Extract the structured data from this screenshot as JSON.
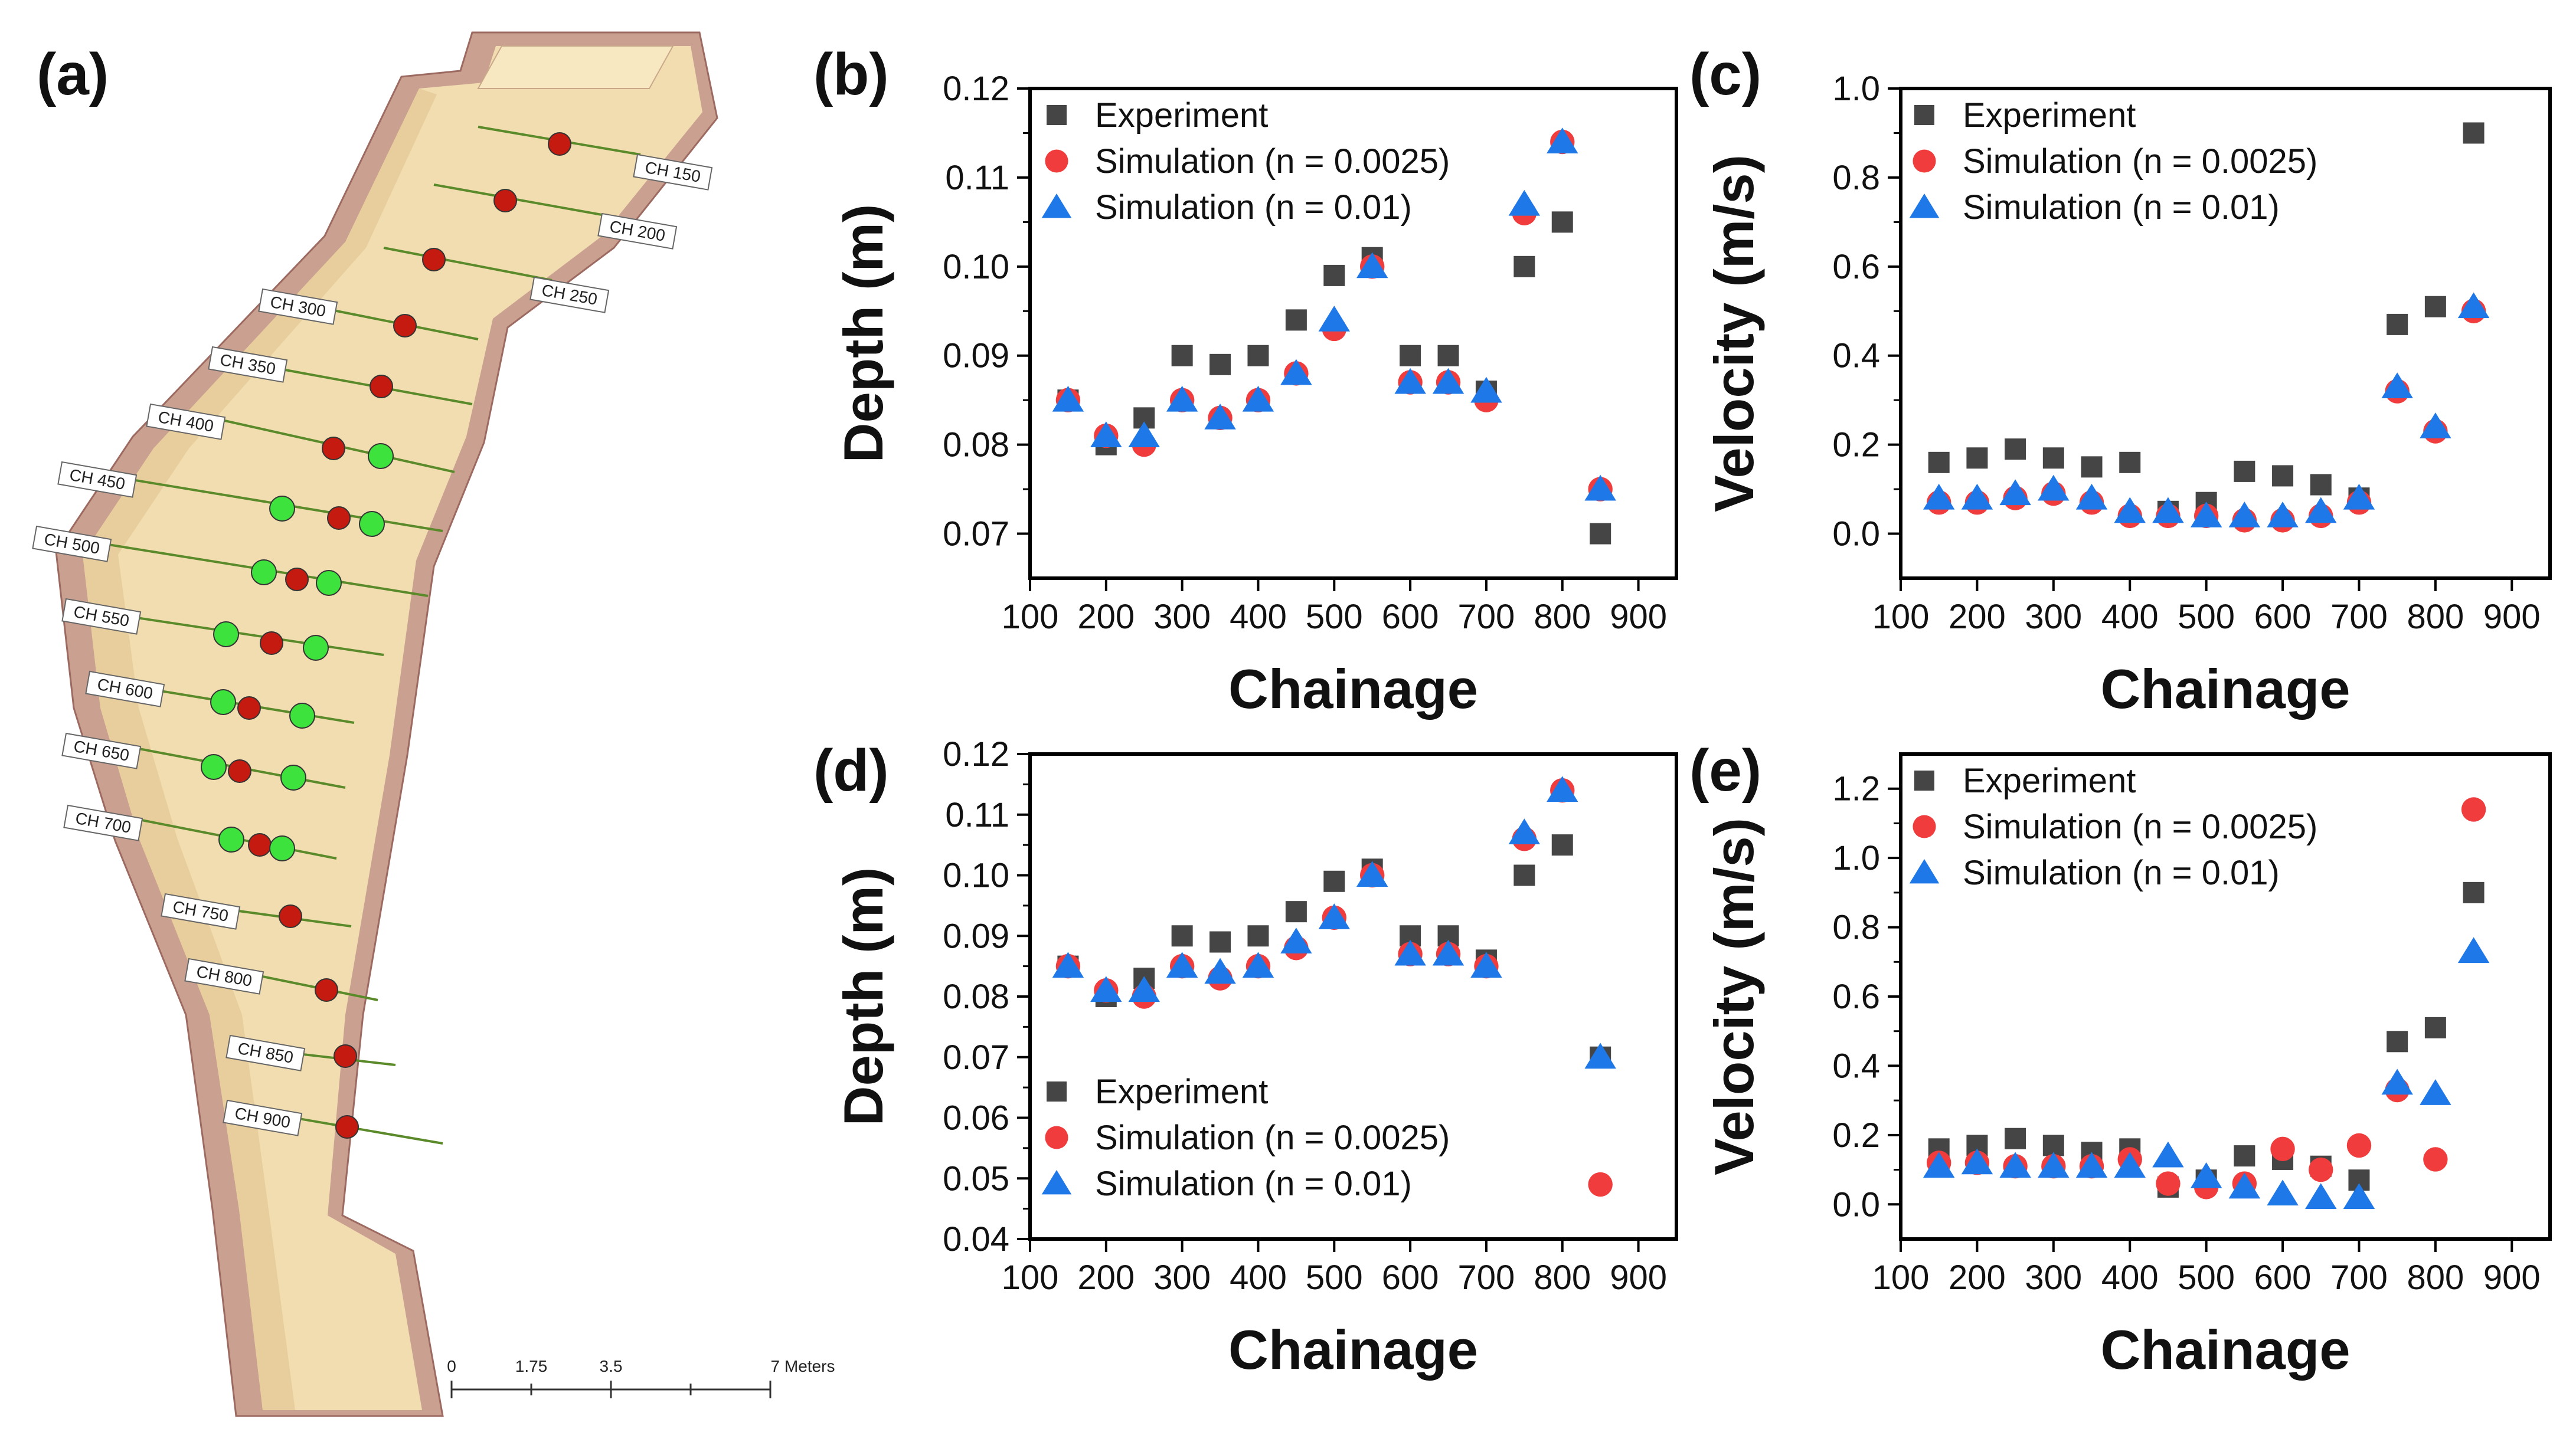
{
  "panel_labels": [
    "(a)",
    "(b)",
    "(c)",
    "(d)",
    "(e)"
  ],
  "map": {
    "chainage_labels": [
      "CH 150",
      "CH 200",
      "CH 250",
      "CH 300",
      "CH 350",
      "CH 400",
      "CH 450",
      "CH 500",
      "CH 550",
      "CH 600",
      "CH 650",
      "CH 700",
      "CH 750",
      "CH 800",
      "CH 850",
      "CH 900"
    ],
    "scale_bar": {
      "ticks": [
        "0",
        "1.75",
        "3.5",
        "7 Meters"
      ]
    },
    "colors": {
      "channel": "#f2dfae",
      "bank": "#c99a8a",
      "section_line": "#5a8a2a",
      "red_dot": "#c41a10",
      "green_dot": "#3de23d"
    }
  },
  "legend": {
    "experiment": "Experiment",
    "sim_a": "Simulation (n = 0.0025)",
    "sim_b": "Simulation (n = 0.01)"
  },
  "colors": {
    "experiment": "#454545",
    "sim_a": "#f03c3c",
    "sim_b": "#1f78e8"
  },
  "chart_data": [
    {
      "panel": "(b)",
      "type": "scatter",
      "xlabel": "Chainage",
      "ylabel": "Depth (m)",
      "xlim": [
        100,
        950
      ],
      "ylim": [
        0.065,
        0.12
      ],
      "xticks": [
        100,
        200,
        300,
        400,
        500,
        600,
        700,
        800,
        900
      ],
      "yticks": [
        0.07,
        0.08,
        0.09,
        0.1,
        0.11,
        0.12
      ],
      "ytick_labels": [
        "0.07",
        "0.08",
        "0.09",
        "0.10",
        "0.11",
        "0.12"
      ],
      "legend_position": "top-left",
      "x": [
        150,
        200,
        250,
        300,
        350,
        400,
        450,
        500,
        550,
        600,
        650,
        700,
        750,
        800,
        850
      ],
      "series": [
        {
          "name": "Experiment",
          "marker": "square",
          "values": [
            0.085,
            0.08,
            0.083,
            0.09,
            0.089,
            0.09,
            0.094,
            0.099,
            0.101,
            0.09,
            0.09,
            0.086,
            0.1,
            0.105,
            0.07
          ]
        },
        {
          "name": "Simulation (n = 0.0025)",
          "marker": "circle",
          "values": [
            0.085,
            0.081,
            0.08,
            0.085,
            0.083,
            0.085,
            0.088,
            0.093,
            0.1,
            0.087,
            0.087,
            0.085,
            0.106,
            0.114,
            0.075
          ]
        },
        {
          "name": "Simulation (n = 0.01)",
          "marker": "triangle",
          "values": [
            0.085,
            0.081,
            0.081,
            0.085,
            0.083,
            0.085,
            0.088,
            0.094,
            0.1,
            0.087,
            0.087,
            0.086,
            0.107,
            0.114,
            0.075
          ]
        }
      ]
    },
    {
      "panel": "(c)",
      "type": "scatter",
      "xlabel": "Chainage",
      "ylabel": "Velocity (m/s)",
      "xlim": [
        100,
        950
      ],
      "ylim": [
        -0.1,
        1.0
      ],
      "xticks": [
        100,
        200,
        300,
        400,
        500,
        600,
        700,
        800,
        900
      ],
      "yticks": [
        0.0,
        0.2,
        0.4,
        0.6,
        0.8,
        1.0
      ],
      "ytick_labels": [
        "0.0",
        "0.2",
        "0.4",
        "0.6",
        "0.8",
        "1.0"
      ],
      "legend_position": "top-left",
      "x": [
        150,
        200,
        250,
        300,
        350,
        400,
        450,
        500,
        550,
        600,
        650,
        700,
        750,
        800,
        850
      ],
      "series": [
        {
          "name": "Experiment",
          "marker": "square",
          "values": [
            0.16,
            0.17,
            0.19,
            0.17,
            0.15,
            0.16,
            0.05,
            0.07,
            0.14,
            0.13,
            0.11,
            0.08,
            0.47,
            0.51,
            0.9
          ]
        },
        {
          "name": "Simulation (n = 0.0025)",
          "marker": "circle",
          "values": [
            0.07,
            0.07,
            0.08,
            0.09,
            0.07,
            0.04,
            0.04,
            0.04,
            0.03,
            0.03,
            0.04,
            0.07,
            0.32,
            0.23,
            0.5
          ]
        },
        {
          "name": "Simulation (n = 0.01)",
          "marker": "triangle",
          "values": [
            0.08,
            0.08,
            0.09,
            0.1,
            0.08,
            0.05,
            0.05,
            0.04,
            0.04,
            0.04,
            0.05,
            0.08,
            0.33,
            0.24,
            0.51
          ]
        }
      ]
    },
    {
      "panel": "(d)",
      "type": "scatter",
      "xlabel": "Chainage",
      "ylabel": "Depth (m)",
      "xlim": [
        100,
        950
      ],
      "ylim": [
        0.04,
        0.12
      ],
      "xticks": [
        100,
        200,
        300,
        400,
        500,
        600,
        700,
        800,
        900
      ],
      "yticks": [
        0.04,
        0.05,
        0.06,
        0.07,
        0.08,
        0.09,
        0.1,
        0.11,
        0.12
      ],
      "ytick_labels": [
        "0.04",
        "0.05",
        "0.06",
        "0.07",
        "0.08",
        "0.09",
        "0.10",
        "0.11",
        "0.12"
      ],
      "legend_position": "bottom-left",
      "x": [
        150,
        200,
        250,
        300,
        350,
        400,
        450,
        500,
        550,
        600,
        650,
        700,
        750,
        800,
        850
      ],
      "series": [
        {
          "name": "Experiment",
          "marker": "square",
          "values": [
            0.085,
            0.08,
            0.083,
            0.09,
            0.089,
            0.09,
            0.094,
            0.099,
            0.101,
            0.09,
            0.09,
            0.086,
            0.1,
            0.105,
            0.07
          ]
        },
        {
          "name": "Simulation (n = 0.0025)",
          "marker": "circle",
          "values": [
            0.085,
            0.081,
            0.08,
            0.085,
            0.083,
            0.085,
            0.088,
            0.093,
            0.1,
            0.087,
            0.087,
            0.085,
            0.106,
            0.114,
            0.049
          ]
        },
        {
          "name": "Simulation (n = 0.01)",
          "marker": "triangle",
          "values": [
            0.085,
            0.081,
            0.081,
            0.085,
            0.084,
            0.085,
            0.089,
            0.093,
            0.1,
            0.087,
            0.087,
            0.085,
            0.107,
            0.114,
            0.07
          ]
        }
      ]
    },
    {
      "panel": "(e)",
      "type": "scatter",
      "xlabel": "Chainage",
      "ylabel": "Velocity (m/s)",
      "xlim": [
        100,
        950
      ],
      "ylim": [
        -0.1,
        1.3
      ],
      "xticks": [
        100,
        200,
        300,
        400,
        500,
        600,
        700,
        800,
        900
      ],
      "yticks": [
        0.0,
        0.2,
        0.4,
        0.6,
        0.8,
        1.0,
        1.2
      ],
      "ytick_labels": [
        "0.0",
        "0.2",
        "0.4",
        "0.6",
        "0.8",
        "1.0",
        "1.2"
      ],
      "legend_position": "top-left",
      "x": [
        150,
        200,
        250,
        300,
        350,
        400,
        450,
        500,
        550,
        600,
        650,
        700,
        750,
        800,
        850
      ],
      "series": [
        {
          "name": "Experiment",
          "marker": "square",
          "values": [
            0.16,
            0.17,
            0.19,
            0.17,
            0.15,
            0.16,
            0.05,
            0.07,
            0.14,
            0.13,
            0.11,
            0.07,
            0.47,
            0.51,
            0.9
          ]
        },
        {
          "name": "Simulation (n = 0.0025)",
          "marker": "circle",
          "values": [
            0.12,
            0.12,
            0.11,
            0.11,
            0.11,
            0.13,
            0.06,
            0.05,
            0.06,
            0.16,
            0.1,
            0.17,
            0.33,
            0.13,
            1.14
          ]
        },
        {
          "name": "Simulation (n = 0.01)",
          "marker": "triangle",
          "values": [
            0.11,
            0.12,
            0.11,
            0.11,
            0.11,
            0.11,
            0.14,
            0.08,
            0.05,
            0.03,
            0.02,
            0.02,
            0.35,
            0.32,
            0.73
          ]
        }
      ]
    }
  ]
}
